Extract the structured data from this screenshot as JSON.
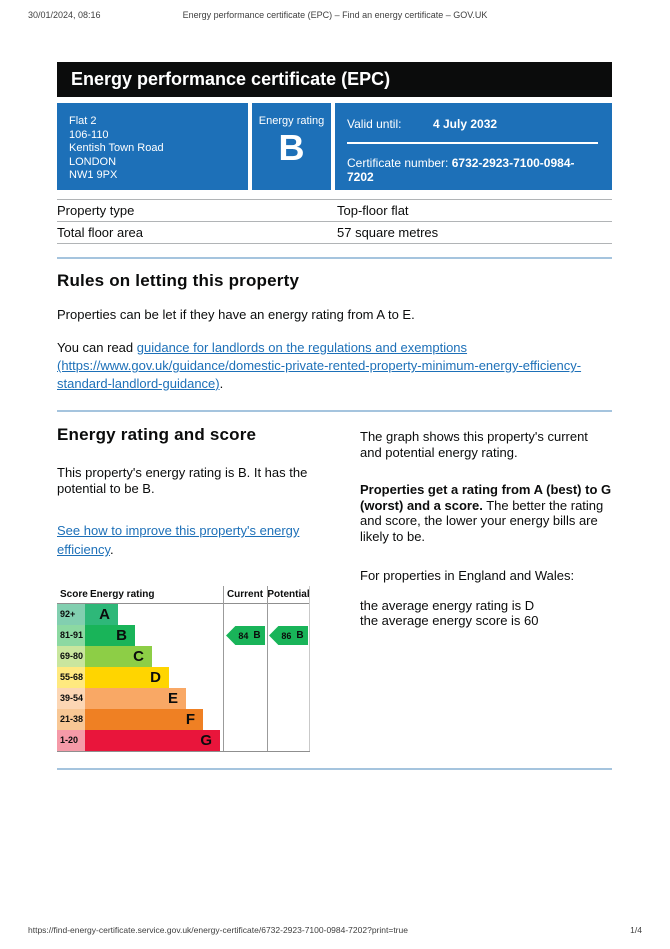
{
  "print_header": {
    "datetime": "30/01/2024, 08:16",
    "title": "Energy performance certificate (EPC) – Find an energy certificate – GOV.UK"
  },
  "print_footer": {
    "url": "https://find-energy-certificate.service.gov.uk/energy-certificate/6732-2923-7100-0984-7202?print=true",
    "page": "1/4"
  },
  "banner": {
    "title": "Energy performance certificate (EPC)"
  },
  "summary": {
    "accent_color": "#1d70b8",
    "address_lines": [
      "Flat 2",
      "106-110",
      "Kentish Town Road",
      "LONDON",
      "NW1 9PX"
    ],
    "energy_rating_label": "Energy rating",
    "energy_rating": "B",
    "valid_until_label": "Valid until:",
    "valid_until": "4 July 2032",
    "certificate_number_label": "Certificate number:",
    "certificate_number": "6732-2923-7100-0984-7202"
  },
  "facts": {
    "rows": [
      {
        "label": "Property type",
        "value": "Top-floor flat"
      },
      {
        "label": "Total floor area",
        "value": "57 square metres"
      }
    ]
  },
  "rules_section": {
    "heading": "Rules on letting this property",
    "para1": "Properties can be let if they have an energy rating from A to E.",
    "para2_prefix": "You can read ",
    "link_text": "guidance for landlords on the regulations and exemptions (https://www.gov.uk/guidance/domestic-private-rented-property-minimum-energy-efficiency-standard-landlord-guidance)",
    "para2_suffix": "."
  },
  "rating_section": {
    "heading": "Energy rating and score",
    "para1": "This property's energy rating is B. It has the potential to be B.",
    "improve_link_text": "See how to improve this property's energy efficiency",
    "improve_link_suffix": ".",
    "right": {
      "para1": "The graph shows this property's current and potential energy rating.",
      "para2_bold": "Properties get a rating from A (best) to G (worst) and a score.",
      "para2_rest": " The better the rating and score, the lower your energy bills are likely to be.",
      "para3": "For properties in England and Wales:",
      "averages": [
        "the average energy rating is D",
        "the average energy score is 60"
      ]
    }
  },
  "chart_data": {
    "type": "bar",
    "subtype": "epc-rating-graph",
    "score_header": "Score",
    "rating_header": "Energy rating",
    "current_header": "Current",
    "potential_header": "Potential",
    "bands": [
      {
        "grade": "A",
        "score_range": "92+",
        "color": "#2eb879",
        "tint": "#82cfb0"
      },
      {
        "grade": "B",
        "score_range": "81-91",
        "color": "#19b459",
        "tint": "#8cd9a2"
      },
      {
        "grade": "C",
        "score_range": "69-80",
        "color": "#8dce46",
        "tint": "#c9e69e"
      },
      {
        "grade": "D",
        "score_range": "55-68",
        "color": "#ffd500",
        "tint": "#ffe97f"
      },
      {
        "grade": "E",
        "score_range": "39-54",
        "color": "#f9a865",
        "tint": "#fcd6b4"
      },
      {
        "grade": "F",
        "score_range": "21-38",
        "color": "#ef8023",
        "tint": "#f8c795"
      },
      {
        "grade": "G",
        "score_range": "1-20",
        "color": "#e9153b",
        "tint": "#f59aa8"
      }
    ],
    "current": {
      "score": 84,
      "grade": "B",
      "band_index": 1,
      "arrow_color": "#19b459"
    },
    "potential": {
      "score": 86,
      "grade": "B",
      "band_index": 1,
      "arrow_color": "#19b459"
    }
  }
}
